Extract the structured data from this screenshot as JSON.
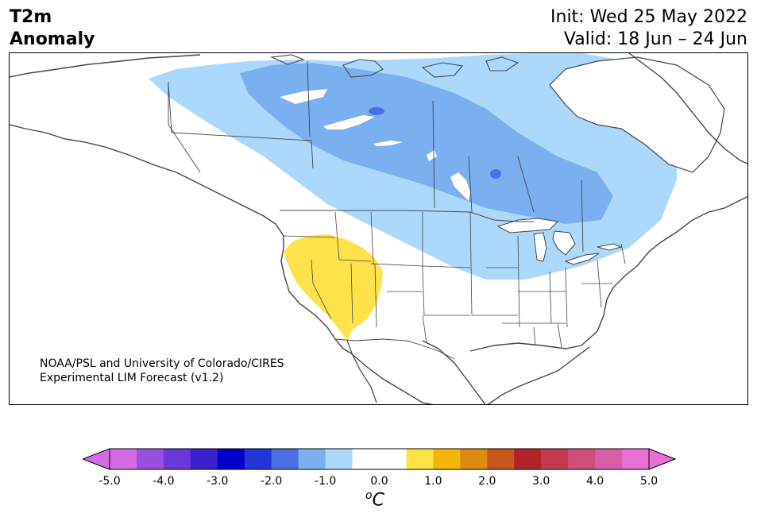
{
  "title": {
    "line1": "T2m",
    "line2": "Anomaly"
  },
  "dates": {
    "init": "Init: Wed 25 May 2022",
    "valid": "Valid: 18 Jun – 24 Jun"
  },
  "credit": {
    "line1": "NOAA/PSL and University of Colorado/CIRES",
    "line2": "Experimental LIM Forecast (v1.2)"
  },
  "colorbar": {
    "unit_symbol": "o",
    "unit_letter": "C",
    "ticks": [
      "-5.0",
      "-4.0",
      "-3.0",
      "-2.0",
      "-1.0",
      "0.0",
      "1.0",
      "2.0",
      "3.0",
      "4.0",
      "5.0"
    ],
    "colors": [
      "#d46be6",
      "#9a4ede",
      "#6a38d8",
      "#3a1fcf",
      "#0000cc",
      "#2235d8",
      "#4c6fe3",
      "#7ab0f0",
      "#acd9fb",
      "#ffffff",
      "#ffffff",
      "#fde24a",
      "#f2b705",
      "#dd8a10",
      "#c8571b",
      "#b02428",
      "#c23a4f",
      "#cf4f7a",
      "#d85fa6",
      "#e86fd6"
    ],
    "min_color": "#d46be6",
    "max_color": "#e86fd6"
  },
  "map_colors": {
    "light_blue": "#acd9fb",
    "mid_blue": "#7ab0f0",
    "dark_blue": "#4c6fe3",
    "yellow": "#fde24a",
    "land_lines": "#444444",
    "lakes": "#ffffff"
  }
}
